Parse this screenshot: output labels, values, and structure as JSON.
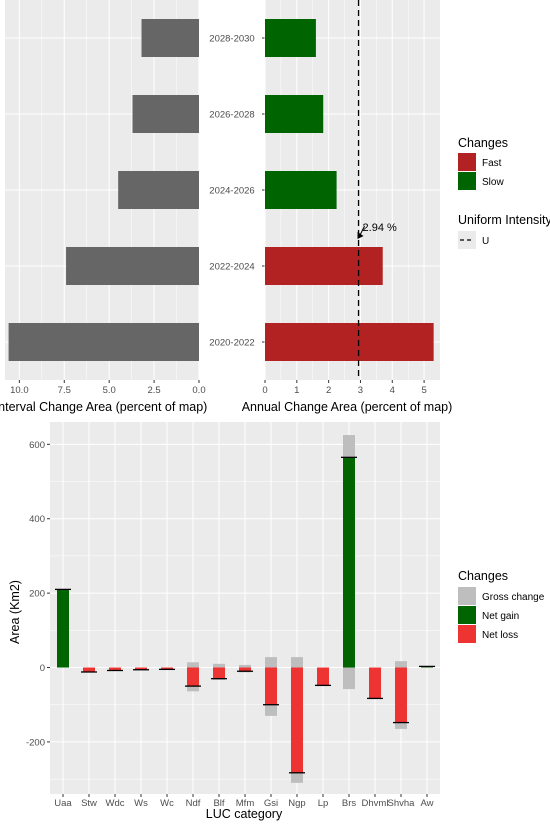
{
  "chart_data": [
    {
      "type": "bar",
      "orientation": "horizontal",
      "reversed_x": true,
      "categories": [
        "2020-2022",
        "2022-2024",
        "2024-2026",
        "2026-2028",
        "2028-2030"
      ],
      "values": [
        10.6,
        7.4,
        4.5,
        3.7,
        3.2
      ],
      "xlabel": "Interval Change Area (percent of map)",
      "xlim": [
        0,
        10.8
      ],
      "xticks": [
        "10.0",
        "7.5",
        "5.0",
        "2.5",
        "0.0"
      ],
      "bar_color": "#666666",
      "grid": true
    },
    {
      "type": "bar",
      "orientation": "horizontal",
      "categories": [
        "2020-2022",
        "2022-2024",
        "2024-2026",
        "2026-2028",
        "2028-2030"
      ],
      "values": [
        5.3,
        3.7,
        2.25,
        1.83,
        1.6
      ],
      "changes": [
        "Fast",
        "Fast",
        "Slow",
        "Slow",
        "Slow"
      ],
      "xlabel": "Annual Change Area (percent of map)",
      "xlim": [
        0,
        5.5
      ],
      "xticks": [
        "0",
        "1",
        "2",
        "3",
        "4",
        "5"
      ],
      "uniform_intensity": 2.94,
      "uniform_label": "2.94 %",
      "grid": true
    },
    {
      "type": "bar",
      "categories": [
        "Uaa",
        "Stw",
        "Wdc",
        "Ws",
        "Wc",
        "Ndf",
        "Blf",
        "Mfm",
        "Gsi",
        "Ngp",
        "Lp",
        "Brs",
        "Dhvml",
        "Shvha",
        "Aw"
      ],
      "gross_gain": [
        210,
        0,
        0,
        0,
        0,
        14,
        10,
        7,
        28,
        28,
        0,
        625,
        0,
        17,
        3
      ],
      "gross_loss": [
        0,
        -12,
        -8,
        -6,
        -5,
        -64,
        -33,
        -13,
        -130,
        -310,
        -50,
        -58,
        -85,
        -165,
        0
      ],
      "net": [
        210,
        -12,
        -8,
        -6,
        -5,
        -50,
        -30,
        -10,
        -100,
        -283,
        -48,
        565,
        -83,
        -148,
        3
      ],
      "xlabel": "LUC category",
      "ylabel": "Area (Km2)",
      "ylim": [
        -340,
        660
      ],
      "yticks": [
        -200,
        0,
        200,
        400,
        600
      ],
      "grid": true
    }
  ],
  "legends": {
    "top": {
      "changes_title": "Changes",
      "items": [
        {
          "label": "Fast",
          "color": "#b22222"
        },
        {
          "label": "Slow",
          "color": "#006400"
        }
      ],
      "uniform_title": "Uniform Intensity",
      "uniform_item": "U"
    },
    "bottom": {
      "title": "Changes",
      "items": [
        {
          "label": "Gross change",
          "color": "#bebebe"
        },
        {
          "label": "Net gain",
          "color": "#006400"
        },
        {
          "label": "Net loss",
          "color": "#ee3333"
        }
      ]
    }
  },
  "colors": {
    "panel_bg": "#ebebeb",
    "grid": "#ffffff",
    "fast": "#b22222",
    "slow": "#006400",
    "interval": "#666666",
    "gross": "#bebebe",
    "net_gain": "#006400",
    "net_loss": "#ee3333"
  }
}
